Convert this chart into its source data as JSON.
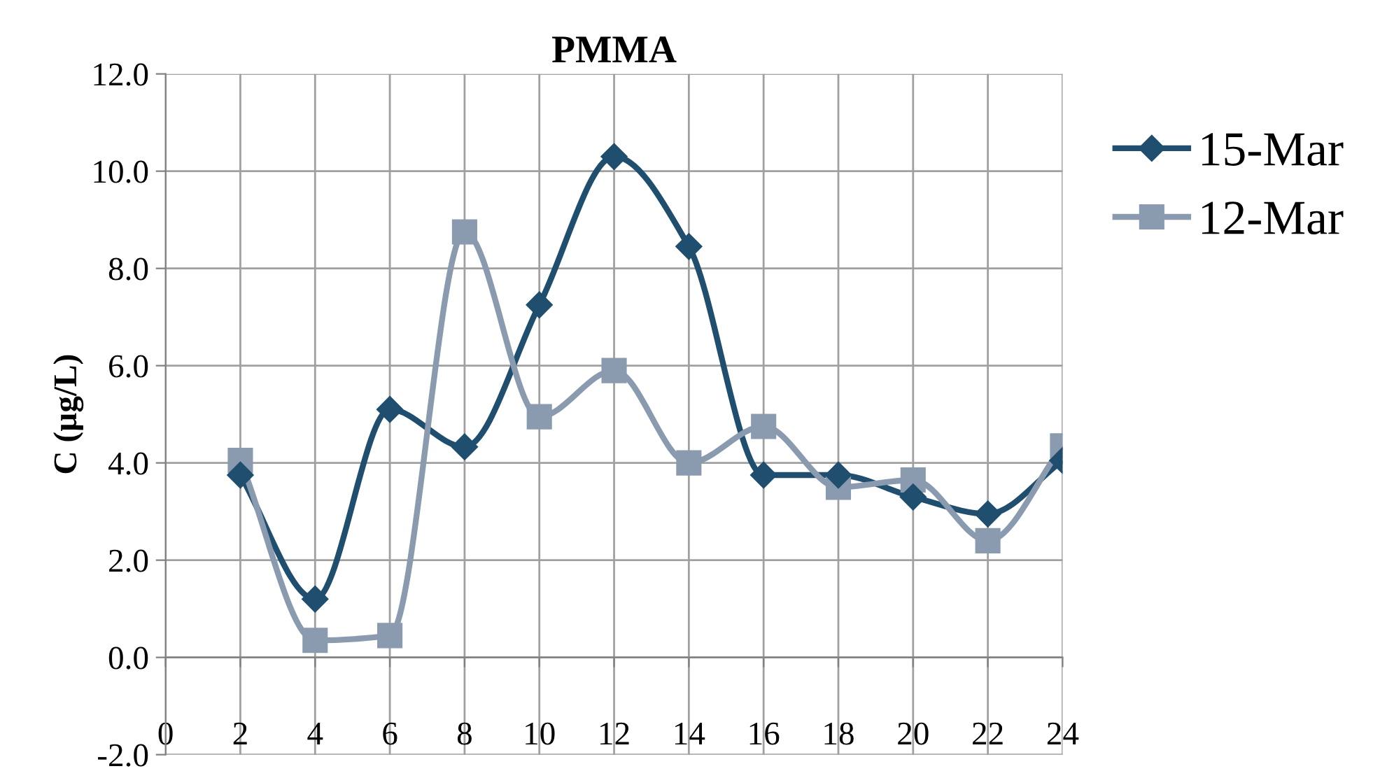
{
  "chart_data": {
    "type": "line",
    "title": "PMMA",
    "ylabel": "C (µg/L)",
    "x": [
      2,
      4,
      6,
      8,
      10,
      12,
      14,
      16,
      18,
      20,
      22,
      24
    ],
    "series": [
      {
        "name": "15-Mar",
        "color": "#1f4e6e",
        "marker": "diamond",
        "values": [
          3.75,
          1.2,
          5.1,
          4.33,
          7.25,
          10.3,
          8.45,
          3.75,
          3.75,
          3.3,
          2.95,
          4.05
        ]
      },
      {
        "name": "12-Mar",
        "color": "#8a9bb0",
        "marker": "square",
        "values": [
          4.05,
          0.35,
          0.45,
          8.75,
          4.95,
          5.9,
          4.0,
          4.75,
          3.5,
          3.65,
          2.4,
          4.35
        ]
      }
    ],
    "xlim": [
      0,
      24
    ],
    "xticks": [
      0,
      2,
      4,
      6,
      8,
      10,
      12,
      14,
      16,
      18,
      20,
      22,
      24
    ],
    "ylim": [
      -2,
      12
    ],
    "yticks": [
      {
        "value": -2,
        "label": "-2.0"
      },
      {
        "value": 0,
        "label": "0.0"
      },
      {
        "value": 2,
        "label": "2.0"
      },
      {
        "value": 4,
        "label": "4.0"
      },
      {
        "value": 6,
        "label": "6.0"
      },
      {
        "value": 8,
        "label": "8.0"
      },
      {
        "value": 10,
        "label": "10.0"
      },
      {
        "value": 12,
        "label": "12.0"
      }
    ],
    "grid": true,
    "legend": "right",
    "line_style": "solid"
  }
}
